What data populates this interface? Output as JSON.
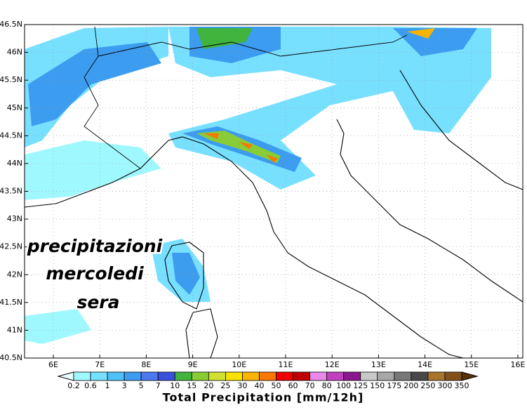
{
  "map": {
    "lat_labels": [
      "46.5N",
      "46N",
      "45.5N",
      "45N",
      "44.5N",
      "44N",
      "43.5N",
      "43N",
      "42.5N",
      "42N",
      "41.5N",
      "41N",
      "40.5N"
    ],
    "lon_labels": [
      "6E",
      "7E",
      "8E",
      "9E",
      "10E",
      "11E",
      "12E",
      "13E",
      "14E",
      "15E",
      "16E"
    ],
    "overlay": [
      "precipitazioni",
      "mercoledi",
      "sera"
    ]
  },
  "colorbar": {
    "title": "Total Precipitation [mm/12h]",
    "labels": [
      0.2,
      0.6,
      1,
      3,
      5,
      7,
      10,
      15,
      20,
      25,
      30,
      40,
      50,
      60,
      70,
      80,
      100,
      125,
      150,
      175,
      200,
      250,
      300,
      350
    ],
    "colors": [
      "#e8ffff",
      "#a0f8ff",
      "#78e0ff",
      "#50c0f8",
      "#3c9cf0",
      "#4c78f0",
      "#3850dc",
      "#40b43c",
      "#88cc38",
      "#d0e030",
      "#f8e000",
      "#f8b400",
      "#f87800",
      "#f00000",
      "#c00000",
      "#e888e8",
      "#c040c0",
      "#8c1890",
      "#c8c8c8",
      "#a8a8a8",
      "#787878",
      "#484848",
      "#a8742c",
      "#805018",
      "#5a3008"
    ]
  }
}
